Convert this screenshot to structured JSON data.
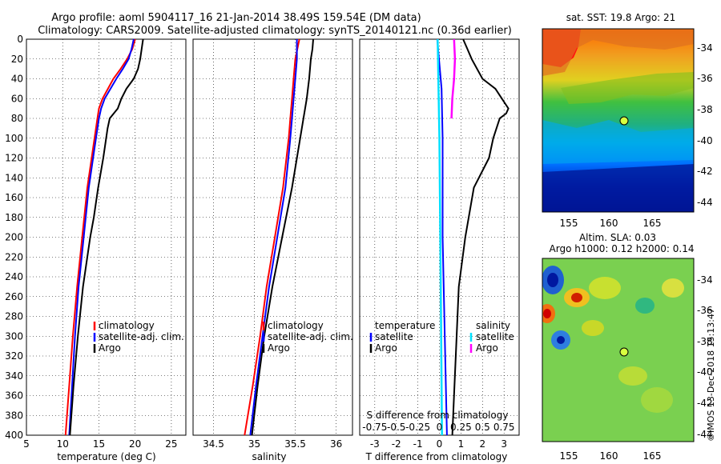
{
  "header": {
    "line1": "Argo profile: aoml 5904117_16 21-Jan-2014 38.49S 159.54E (DM data)",
    "line2": "Climatology: CARS2009. Satellite-adjusted climatology: synTS_20140121.nc (0.36d earlier)"
  },
  "side_stamp": "©IMOS 13-Dec-2018 15:13:47",
  "maps": {
    "sst_title": "sat. SST: 19.8 Argo: 21",
    "sla_title1": "Altim. SLA: 0.03",
    "sla_title2": "Argo h1000: 0.12 h2000: 0.14",
    "x_ticks": [
      "155",
      "160",
      "165"
    ],
    "y_ticks": [
      "-34",
      "-36",
      "-38",
      "-40",
      "-42",
      "-44"
    ]
  },
  "colors": {
    "climatology": "#ff0000",
    "satellite": "#0000ff",
    "argo": "#000000",
    "sat_temp": "#00e0ff",
    "sal_diff": "#ff00ff",
    "marker": "#d8ff40"
  },
  "chart_data": [
    {
      "type": "line",
      "xlabel": "temperature (deg C)",
      "ylabel": "",
      "xlim": [
        5,
        27
      ],
      "ylim": [
        0,
        400
      ],
      "x_ticks": [
        5,
        10,
        15,
        20,
        25
      ],
      "y_ticks": [
        0,
        20,
        40,
        60,
        80,
        100,
        120,
        140,
        160,
        180,
        200,
        220,
        240,
        260,
        280,
        300,
        320,
        340,
        360,
        380,
        400
      ],
      "legend": [
        "climatology",
        "satellite-adj. clim.",
        "Argo"
      ],
      "series": [
        {
          "name": "climatology",
          "color": "#ff0000",
          "depth": [
            0,
            10,
            20,
            30,
            40,
            60,
            70,
            80,
            100,
            150,
            200,
            250,
            300,
            350,
            400
          ],
          "values": [
            20.0,
            19.6,
            18.9,
            18.0,
            17.0,
            15.5,
            15.0,
            14.8,
            14.4,
            13.4,
            12.7,
            12.0,
            11.4,
            10.9,
            10.4
          ]
        },
        {
          "name": "satellite-adj. clim.",
          "color": "#0000ff",
          "depth": [
            0,
            10,
            20,
            30,
            40,
            60,
            70,
            80,
            100,
            150,
            200,
            250,
            300,
            350,
            400
          ],
          "values": [
            19.8,
            19.5,
            19.1,
            18.3,
            17.4,
            15.8,
            15.3,
            15.0,
            14.6,
            13.6,
            12.9,
            12.2,
            11.7,
            11.3,
            10.9
          ]
        },
        {
          "name": "Argo",
          "color": "#000000",
          "depth": [
            0,
            5,
            10,
            20,
            30,
            40,
            50,
            60,
            70,
            80,
            90,
            100,
            120,
            150,
            180,
            200,
            250,
            300,
            350,
            400
          ],
          "values": [
            21.1,
            21.0,
            20.9,
            20.7,
            20.4,
            19.8,
            18.8,
            18.1,
            17.6,
            16.5,
            16.2,
            16.0,
            15.6,
            14.9,
            14.3,
            13.8,
            12.8,
            12.1,
            11.5,
            11.0
          ]
        }
      ]
    },
    {
      "type": "line",
      "xlabel": "salinity",
      "ylabel": "",
      "xlim": [
        34.25,
        36.2
      ],
      "ylim": [
        0,
        400
      ],
      "x_ticks": [
        34.5,
        35,
        35.5,
        36
      ],
      "x_tick_labels": [
        "34.5",
        "35",
        "35.5",
        "36"
      ],
      "legend": [
        "climatology",
        "satellite-adj. clim.",
        "Argo"
      ],
      "series": [
        {
          "name": "climatology",
          "color": "#ff0000",
          "depth": [
            0,
            20,
            40,
            60,
            80,
            100,
            150,
            200,
            250,
            300,
            350,
            400
          ],
          "values": [
            35.55,
            35.5,
            35.48,
            35.46,
            35.44,
            35.42,
            35.35,
            35.25,
            35.15,
            35.07,
            34.98,
            34.88
          ]
        },
        {
          "name": "satellite-adj. clim.",
          "color": "#0000ff",
          "depth": [
            0,
            20,
            40,
            60,
            80,
            100,
            150,
            200,
            250,
            300,
            350,
            400
          ],
          "values": [
            35.52,
            35.52,
            35.5,
            35.48,
            35.46,
            35.44,
            35.38,
            35.28,
            35.18,
            35.1,
            35.02,
            34.95
          ]
        },
        {
          "name": "Argo",
          "color": "#000000",
          "depth": [
            0,
            10,
            20,
            40,
            60,
            80,
            100,
            150,
            200,
            250,
            300,
            350,
            400
          ],
          "values": [
            35.72,
            35.71,
            35.69,
            35.67,
            35.64,
            35.6,
            35.56,
            35.46,
            35.34,
            35.22,
            35.12,
            35.04,
            34.97
          ]
        }
      ]
    },
    {
      "type": "line",
      "xlabel": "T difference from climatology",
      "ylabel": "",
      "xlim": [
        -3.7,
        3.7
      ],
      "ylim": [
        0,
        400
      ],
      "x_ticks": [
        -3,
        -2,
        -1,
        0,
        1,
        2,
        3
      ],
      "x_tick_labels": [
        "-3",
        "-2",
        "-1",
        "0",
        "1",
        "2",
        "3"
      ],
      "top_xlabel": "S difference from climatology",
      "top_x_tick_labels": [
        "-0.75",
        "-0.5",
        "-0.25",
        "0",
        "0.25",
        "0.5",
        "0.75"
      ],
      "legend_left_title": "temperature",
      "legend_right_title": "salinity",
      "legend": [
        "satellite",
        "Argo",
        "satellite",
        "Argo"
      ],
      "series": [
        {
          "name": "temperature satellite",
          "color": "#0000ff",
          "depth": [
            0,
            50,
            100,
            200,
            300,
            400
          ],
          "values": [
            -0.1,
            0.1,
            0.15,
            0.15,
            0.25,
            0.35
          ]
        },
        {
          "name": "temperature Argo",
          "color": "#000000",
          "depth": [
            0,
            10,
            20,
            40,
            50,
            60,
            70,
            75,
            80,
            100,
            120,
            150,
            200,
            250,
            300,
            400
          ],
          "values": [
            1.1,
            1.3,
            1.5,
            2.0,
            2.6,
            2.9,
            3.2,
            3.1,
            2.8,
            2.5,
            2.3,
            1.6,
            1.2,
            0.9,
            0.8,
            0.6
          ]
        },
        {
          "name": "salinity satellite",
          "color": "#00e0ff",
          "depth": [
            0,
            100,
            200,
            300,
            400
          ],
          "values": [
            -0.02,
            0.0,
            0.01,
            0.02,
            0.03
          ]
        },
        {
          "name": "salinity Argo",
          "color": "#ff00ff",
          "depth": [
            0,
            20,
            40,
            60,
            80
          ],
          "values": [
            0.17,
            0.18,
            0.17,
            0.15,
            0.14
          ]
        }
      ]
    }
  ]
}
